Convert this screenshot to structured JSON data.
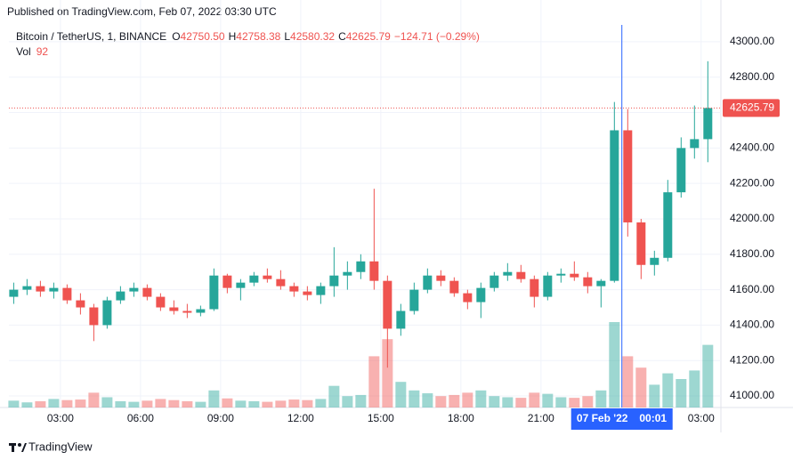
{
  "header": {
    "published": "Published on TradingView.com, Feb 07, 2022 03:30 UTC"
  },
  "footer": {
    "brand": "TradingView"
  },
  "chart_data": {
    "type": "candlestick",
    "legend": {
      "symbol": "Bitcoin / TetherUS, 1, BINANCE",
      "ohlc": [
        {
          "label": "O",
          "value": "42750.50"
        },
        {
          "label": "H",
          "value": "42758.38"
        },
        {
          "label": "L",
          "value": "42580.32"
        },
        {
          "label": "C",
          "value": "42625.79"
        }
      ],
      "change": "−124.71 (−0.29%)",
      "volume_label": "Vol",
      "volume_value": "92"
    },
    "up_color": "#26a69a",
    "down_color": "#ef5350",
    "x": [
      1.25,
      1.75,
      2.25,
      2.75,
      3.25,
      3.75,
      4.25,
      4.75,
      5.25,
      5.75,
      6.25,
      6.75,
      7.25,
      7.75,
      8.25,
      8.75,
      9.25,
      9.75,
      10.25,
      10.75,
      11.25,
      11.75,
      12.25,
      12.75,
      13.25,
      13.75,
      14.25,
      14.75,
      15.25,
      15.75,
      16.25,
      16.75,
      17.25,
      17.75,
      18.25,
      18.75,
      19.25,
      19.75,
      20.25,
      20.75,
      21.25,
      21.75,
      22.25,
      22.75,
      23.25,
      23.75,
      24.25,
      24.75,
      25.25,
      25.75,
      26.25,
      26.75,
      27.25
    ],
    "open": [
      41560,
      41600,
      41620,
      41590,
      41610,
      41540,
      41500,
      41400,
      41540,
      41590,
      41610,
      41560,
      41500,
      41480,
      41470,
      41490,
      41680,
      41610,
      41640,
      41680,
      41660,
      41620,
      41590,
      41570,
      41620,
      41680,
      41700,
      41760,
      41650,
      41380,
      41480,
      41600,
      41680,
      41650,
      41580,
      41530,
      41610,
      41680,
      41700,
      41660,
      41560,
      41680,
      41690,
      41670,
      41620,
      41650,
      42500,
      41980,
      41740,
      41780,
      42150,
      42400,
      42450
    ],
    "high": [
      41640,
      41660,
      41650,
      41640,
      41630,
      41580,
      41520,
      41560,
      41620,
      41640,
      41630,
      41580,
      41540,
      41520,
      41510,
      41720,
      41690,
      41660,
      41700,
      41720,
      41710,
      41640,
      41620,
      41640,
      41840,
      41760,
      41800,
      42170,
      41680,
      41520,
      41640,
      41720,
      41710,
      41670,
      41600,
      41640,
      41700,
      41750,
      41740,
      41680,
      41700,
      41720,
      41760,
      41700,
      41660,
      42660,
      42620,
      42000,
      41820,
      42220,
      42460,
      42640,
      42890
    ],
    "low": [
      41520,
      41570,
      41560,
      41550,
      41520,
      41460,
      41310,
      41380,
      41520,
      41560,
      41540,
      41480,
      41460,
      41440,
      41450,
      41480,
      41580,
      41540,
      41620,
      41640,
      41600,
      41560,
      41540,
      41520,
      41560,
      41600,
      41660,
      41600,
      41160,
      41340,
      41460,
      41580,
      41620,
      41560,
      41490,
      41440,
      41590,
      41650,
      41640,
      41500,
      41540,
      41640,
      41650,
      41580,
      41500,
      41640,
      41900,
      41660,
      41680,
      41760,
      42120,
      42340,
      42320
    ],
    "close": [
      41600,
      41620,
      41590,
      41610,
      41540,
      41500,
      41400,
      41540,
      41590,
      41610,
      41560,
      41500,
      41480,
      41470,
      41490,
      41680,
      41610,
      41640,
      41680,
      41660,
      41620,
      41590,
      41570,
      41620,
      41680,
      41700,
      41760,
      41650,
      41380,
      41480,
      41600,
      41680,
      41650,
      41580,
      41530,
      41610,
      41680,
      41700,
      41660,
      41560,
      41680,
      41690,
      41670,
      41620,
      41650,
      42500,
      41980,
      41740,
      41780,
      42150,
      42400,
      42450,
      42625.79
    ],
    "volume": [
      120,
      90,
      110,
      150,
      130,
      140,
      260,
      180,
      110,
      100,
      120,
      150,
      130,
      110,
      100,
      300,
      160,
      120,
      110,
      100,
      120,
      140,
      130,
      150,
      380,
      200,
      220,
      900,
      1200,
      450,
      300,
      250,
      200,
      220,
      260,
      300,
      200,
      180,
      170,
      260,
      240,
      180,
      170,
      200,
      300,
      1500,
      900,
      700,
      400,
      600,
      500,
      650,
      1100
    ],
    "xlim": [
      1.07,
      27.74
    ],
    "xticks": [
      {
        "value": 3,
        "label": "03:00"
      },
      {
        "value": 6,
        "label": "06:00"
      },
      {
        "value": 9,
        "label": "09:00"
      },
      {
        "value": 12,
        "label": "12:00"
      },
      {
        "value": 15,
        "label": "15:00"
      },
      {
        "value": 18,
        "label": "18:00"
      },
      {
        "value": 21,
        "label": "21:00"
      },
      {
        "value": 27,
        "label": "03:00"
      }
    ],
    "ylim": [
      40935,
      43095
    ],
    "yticks": [
      {
        "value": 41000,
        "label": "41000.00"
      },
      {
        "value": 41200,
        "label": "41200.00"
      },
      {
        "value": 41400,
        "label": "41400.00"
      },
      {
        "value": 41600,
        "label": "41600.00"
      },
      {
        "value": 41800,
        "label": "41800.00"
      },
      {
        "value": 42000,
        "label": "42000.00"
      },
      {
        "value": 42200,
        "label": "42200.00"
      },
      {
        "value": 42400,
        "label": "42400.00"
      },
      {
        "value": 42600,
        "label": "42600.00"
      },
      {
        "value": 42800,
        "label": "42800.00"
      },
      {
        "value": 43000,
        "label": "43000.00"
      }
    ],
    "y2lim": [
      0,
      2000
    ],
    "last_price": {
      "value": 42625.79,
      "label": "42625.79"
    },
    "crosshair": {
      "x": 24.03,
      "date_label": "07 Feb '22",
      "time_label": "00:01",
      "color": "#2962ff"
    },
    "grid": true
  }
}
